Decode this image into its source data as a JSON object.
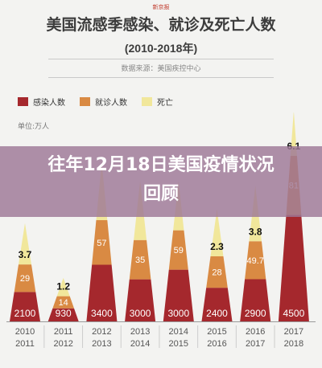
{
  "header": {
    "logo": "新京报",
    "title": "美国流感季感染、就诊及死亡人数",
    "subtitle": "(2010-2018年)",
    "source": "数据来源：美国疾控中心",
    "unit": "单位:万人"
  },
  "banner": {
    "text": "往年12月18日美国疫情状况回顾"
  },
  "colors": {
    "infected": "#a5282d",
    "visits": "#d98a43",
    "deaths": "#f1e79b",
    "background": "#f3f3f1",
    "banner": "#9e7896"
  },
  "chart_data": {
    "type": "bar",
    "categories": [
      "2010-2011",
      "2011-2012",
      "2012-2013",
      "2013-2014",
      "2014-2015",
      "2015-2016",
      "2016-2017",
      "2017-2018"
    ],
    "series": [
      {
        "name": "感染人数",
        "values": [
          2100,
          930,
          3400,
          3000,
          3000,
          2400,
          2900,
          4500
        ],
        "labels": [
          "2100",
          "930",
          "3400",
          "3000",
          "3000",
          "2400",
          "2900",
          "4500"
        ]
      },
      {
        "name": "就诊人数",
        "values": [
          29,
          14,
          57,
          35,
          59,
          28,
          49.7,
          81
        ],
        "labels": [
          "29",
          "14",
          "57",
          "35",
          "59",
          "28",
          "49.7",
          "81"
        ]
      },
      {
        "name": "死亡",
        "values": [
          3.7,
          1.2,
          6.5,
          5.1,
          5.1,
          2.3,
          3.8,
          6.1
        ],
        "labels": [
          "3.7",
          "1.2",
          "",
          "",
          "",
          "2.3",
          "3.8",
          "6.1"
        ]
      }
    ],
    "xticks": [
      [
        "2010",
        "2011"
      ],
      [
        "2011",
        "2012"
      ],
      [
        "2012",
        "2013"
      ],
      [
        "2013",
        "2014"
      ],
      [
        "2014",
        "2015"
      ],
      [
        "2015",
        "2016"
      ],
      [
        "2016",
        "2017"
      ],
      [
        "2017",
        "2018"
      ]
    ],
    "stacked": true,
    "legend": "top-left"
  }
}
